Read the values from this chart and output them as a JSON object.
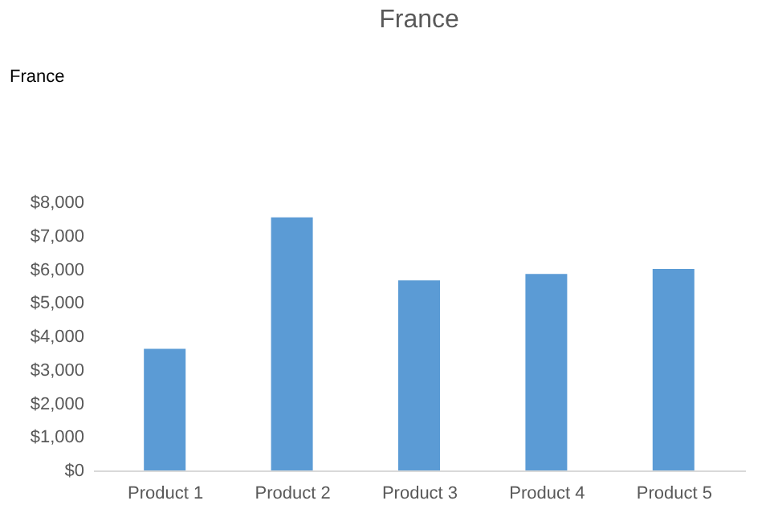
{
  "chart_data": {
    "type": "bar",
    "title": "France",
    "annotations": [
      "France"
    ],
    "categories": [
      "Product 1",
      "Product 2",
      "Product 3",
      "Product 4",
      "Product 5"
    ],
    "values": [
      3630,
      7550,
      5670,
      5860,
      6010
    ],
    "color": "#5b9bd5",
    "ylim": [
      0,
      8000
    ],
    "yticks": [
      {
        "value": 0,
        "label": "$0"
      },
      {
        "value": 1000,
        "label": "$1,000"
      },
      {
        "value": 2000,
        "label": "$2,000"
      },
      {
        "value": 3000,
        "label": "$3,000"
      },
      {
        "value": 4000,
        "label": "$4,000"
      },
      {
        "value": 5000,
        "label": "$5,000"
      },
      {
        "value": 6000,
        "label": "$6,000"
      },
      {
        "value": 7000,
        "label": "$7,000"
      },
      {
        "value": 8000,
        "label": "$8,000"
      }
    ],
    "grid": false
  }
}
